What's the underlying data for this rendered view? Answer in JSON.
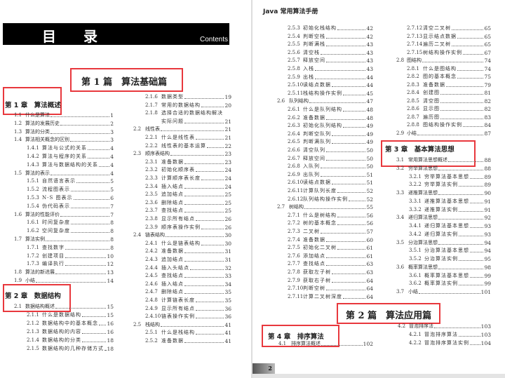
{
  "header": {
    "banner_title": "目 录",
    "banner_subtitle": "Contents",
    "book_title": "Java 常用算法手册",
    "page_number": "2"
  },
  "parts": [
    {
      "title": "第 1 篇　算法基础篇"
    },
    {
      "title": "第 2 篇　算法应用篇"
    }
  ],
  "chapters": [
    {
      "title": "第 1 章　算法概述"
    },
    {
      "title": "第 2 章　数据结构"
    },
    {
      "title": "第 3 章　基本算法思想"
    },
    {
      "title": "第 4 章　排序算法"
    }
  ],
  "accent_color": "#e8383d",
  "groups": [
    {
      "entries": [
        {
          "num": "1.1",
          "title": "什么是算法",
          "page": "1",
          "level": 1
        },
        {
          "num": "1.2",
          "title": "算法的发展历史",
          "page": "2",
          "level": 1
        },
        {
          "num": "1.3",
          "title": "算法的分类",
          "page": "3",
          "level": 1
        },
        {
          "num": "1.4",
          "title": "算法相关概念的区别",
          "page": "3",
          "level": 1
        },
        {
          "num": "1.4.1",
          "title": "算法与公式的关系",
          "page": "4",
          "level": 2
        },
        {
          "num": "1.4.2",
          "title": "算法与程序的关系",
          "page": "4",
          "level": 2
        },
        {
          "num": "1.4.3",
          "title": "算法与数据结构的关系",
          "page": "4",
          "level": 2
        },
        {
          "num": "1.5",
          "title": "算法的表示",
          "page": "4",
          "level": 1
        },
        {
          "num": "1.5.1",
          "title": "自然语言表示",
          "page": "5",
          "level": 2
        },
        {
          "num": "1.5.2",
          "title": "流程图表示",
          "page": "5",
          "level": 2
        },
        {
          "num": "1.5.3",
          "title": "N-S 图表示",
          "page": "6",
          "level": 2
        },
        {
          "num": "1.5.4",
          "title": "伪代码表示",
          "page": "7",
          "level": 2
        },
        {
          "num": "1.6",
          "title": "算法的性能评价",
          "page": "7",
          "level": 1
        },
        {
          "num": "1.6.1",
          "title": "时间复杂度",
          "page": "8",
          "level": 2
        },
        {
          "num": "1.6.2",
          "title": "空间复杂度",
          "page": "8",
          "level": 2
        },
        {
          "num": "1.7",
          "title": "算法实例",
          "page": "8",
          "level": 1
        },
        {
          "num": "1.7.1",
          "title": "查找数字",
          "page": "8",
          "level": 2
        },
        {
          "num": "1.7.2",
          "title": "创建项目",
          "page": "10",
          "level": 2
        },
        {
          "num": "1.7.3",
          "title": "编译执行",
          "page": "12",
          "level": 2
        },
        {
          "num": "1.8",
          "title": "算法的新进展",
          "page": "13",
          "level": 1
        },
        {
          "num": "1.9",
          "title": "小结",
          "page": "14",
          "level": 1
        }
      ]
    },
    {
      "entries": [
        {
          "num": "2.1",
          "title": "数据结构概述",
          "page": "15",
          "level": 1
        },
        {
          "num": "2.1.1",
          "title": "什么是数据结构",
          "page": "15",
          "level": 2
        },
        {
          "num": "2.1.2",
          "title": "数据结构中的基本概念",
          "page": "16",
          "level": 2
        },
        {
          "num": "2.1.3",
          "title": "数据结构的内容",
          "page": "16",
          "level": 2
        },
        {
          "num": "2.1.4",
          "title": "数据结构的分类",
          "page": "18",
          "level": 2
        },
        {
          "num": "2.1.5",
          "title": "数据结构的几种存储方式",
          "page": "18",
          "level": 2
        }
      ]
    },
    {
      "entries": [
        {
          "num": "2.1.6",
          "title": "数据类型",
          "page": "19",
          "level": 2
        },
        {
          "num": "2.1.7",
          "title": "常用的数据结构",
          "page": "20",
          "level": 2
        },
        {
          "num": "2.1.8",
          "title": "选择合适的数据结构解决",
          "page": "",
          "level": 2
        },
        {
          "num": "",
          "title": "实际问题",
          "page": "21",
          "level": 2
        },
        {
          "num": "2.2",
          "title": "线性表",
          "page": "21",
          "level": 1
        },
        {
          "num": "2.2.1",
          "title": "什么是线性表",
          "page": "21",
          "level": 2
        },
        {
          "num": "2.2.2",
          "title": "线性表的基本运算",
          "page": "22",
          "level": 2
        },
        {
          "num": "2.3",
          "title": "顺序表结构",
          "page": "23",
          "level": 1
        },
        {
          "num": "2.3.1",
          "title": "准备数据",
          "page": "23",
          "level": 2
        },
        {
          "num": "2.3.2",
          "title": "初始化顺序表",
          "page": "24",
          "level": 2
        },
        {
          "num": "2.3.3",
          "title": "计算顺序表长度",
          "page": "24",
          "level": 2
        },
        {
          "num": "2.3.4",
          "title": "插入结点",
          "page": "24",
          "level": 2
        },
        {
          "num": "2.3.5",
          "title": "追加结点",
          "page": "25",
          "level": 2
        },
        {
          "num": "2.3.6",
          "title": "删除结点",
          "page": "25",
          "level": 2
        },
        {
          "num": "2.3.7",
          "title": "查找结点",
          "page": "25",
          "level": 2
        },
        {
          "num": "2.3.8",
          "title": "显示所有结点",
          "page": "26",
          "level": 2
        },
        {
          "num": "2.3.9",
          "title": "顺序表操作实例",
          "page": "26",
          "level": 2
        },
        {
          "num": "2.4",
          "title": "链表结构",
          "page": "30",
          "level": 1
        },
        {
          "num": "2.4.1",
          "title": "什么是链表结构",
          "page": "30",
          "level": 2
        },
        {
          "num": "2.4.2",
          "title": "准备数据",
          "page": "31",
          "level": 2
        },
        {
          "num": "2.4.3",
          "title": "追加结点",
          "page": "31",
          "level": 2
        },
        {
          "num": "2.4.4",
          "title": "插入头结点",
          "page": "32",
          "level": 2
        },
        {
          "num": "2.4.5",
          "title": "查找结点",
          "page": "33",
          "level": 2
        },
        {
          "num": "2.4.6",
          "title": "插入结点",
          "page": "34",
          "level": 2
        },
        {
          "num": "2.4.7",
          "title": "删除结点",
          "page": "35",
          "level": 2
        },
        {
          "num": "2.4.8",
          "title": "计算链表长度",
          "page": "35",
          "level": 2
        },
        {
          "num": "2.4.9",
          "title": "显示所有结点",
          "page": "36",
          "level": 2
        },
        {
          "num": "2.4.10",
          "title": "链表操作实例",
          "page": "36",
          "level": 2
        },
        {
          "num": "2.5",
          "title": "栈结构",
          "page": "41",
          "level": 1
        },
        {
          "num": "2.5.1",
          "title": "什么是栈结构",
          "page": "41",
          "level": 2
        },
        {
          "num": "2.5.2",
          "title": "准备数据",
          "page": "41",
          "level": 2
        }
      ]
    },
    {
      "entries": [
        {
          "num": "2.5.3",
          "title": "初始化栈结构",
          "page": "42",
          "level": 2
        },
        {
          "num": "2.5.4",
          "title": "判断空栈",
          "page": "42",
          "level": 2
        },
        {
          "num": "2.5.5",
          "title": "判断满栈",
          "page": "43",
          "level": 2
        },
        {
          "num": "2.5.6",
          "title": "清空栈",
          "page": "43",
          "level": 2
        },
        {
          "num": "2.5.7",
          "title": "释放空间",
          "page": "43",
          "level": 2
        },
        {
          "num": "2.5.8",
          "title": "入栈",
          "page": "43",
          "level": 2
        },
        {
          "num": "2.5.9",
          "title": "出栈",
          "page": "44",
          "level": 2
        },
        {
          "num": "2.5.10",
          "title": "读结点数据",
          "page": "44",
          "level": 2
        },
        {
          "num": "2.5.11",
          "title": "栈结构操作实例",
          "page": "45",
          "level": 2
        },
        {
          "num": "2.6",
          "title": "队列结构",
          "page": "47",
          "level": 1
        },
        {
          "num": "2.6.1",
          "title": "什么是队列结构",
          "page": "48",
          "level": 2
        },
        {
          "num": "2.6.2",
          "title": "准备数据",
          "page": "48",
          "level": 2
        },
        {
          "num": "2.6.3",
          "title": "初始化队列结构",
          "page": "49",
          "level": 2
        },
        {
          "num": "2.6.4",
          "title": "判断空队列",
          "page": "49",
          "level": 2
        },
        {
          "num": "2.6.5",
          "title": "判断满队列",
          "page": "49",
          "level": 2
        },
        {
          "num": "2.6.6",
          "title": "清空队列",
          "page": "50",
          "level": 2
        },
        {
          "num": "2.6.7",
          "title": "释放空间",
          "page": "50",
          "level": 2
        },
        {
          "num": "2.6.8",
          "title": "入队列",
          "page": "50",
          "level": 2
        },
        {
          "num": "2.6.9",
          "title": "出队列",
          "page": "51",
          "level": 2
        },
        {
          "num": "2.6.10",
          "title": "读结点数据",
          "page": "51",
          "level": 2
        },
        {
          "num": "2.6.11",
          "title": "计算队列长度",
          "page": "52",
          "level": 2
        },
        {
          "num": "2.6.12",
          "title": "队列结构操作实例",
          "page": "52",
          "level": 2
        },
        {
          "num": "2.7",
          "title": "树结构",
          "page": "55",
          "level": 1
        },
        {
          "num": "2.7.1",
          "title": "什么是树结构",
          "page": "56",
          "level": 2
        },
        {
          "num": "2.7.2",
          "title": "树的基本概念",
          "page": "56",
          "level": 2
        },
        {
          "num": "2.7.3",
          "title": "二叉树",
          "page": "57",
          "level": 2
        },
        {
          "num": "2.7.4",
          "title": "准备数据",
          "page": "60",
          "level": 2
        },
        {
          "num": "2.7.5",
          "title": "初始化二叉树",
          "page": "61",
          "level": 2
        },
        {
          "num": "2.7.6",
          "title": "添加结点",
          "page": "61",
          "level": 2
        },
        {
          "num": "2.7.7",
          "title": "查找结点",
          "page": "63",
          "level": 2
        },
        {
          "num": "2.7.8",
          "title": "获取左子树",
          "page": "63",
          "level": 2
        },
        {
          "num": "2.7.9",
          "title": "获取右子树",
          "page": "64",
          "level": 2
        },
        {
          "num": "2.7.10",
          "title": "判断空树",
          "page": "64",
          "level": 2
        },
        {
          "num": "2.7.11",
          "title": "计算二叉树深度",
          "page": "64",
          "level": 2
        }
      ]
    },
    {
      "entries": [
        {
          "num": "4.1",
          "title": "排序算法概述",
          "page": "102",
          "level": 1
        }
      ]
    },
    {
      "entries": [
        {
          "num": "2.7.12",
          "title": "清空二叉树",
          "page": "65",
          "level": 2
        },
        {
          "num": "2.7.13",
          "title": "显示结点数据",
          "page": "65",
          "level": 2
        },
        {
          "num": "2.7.14",
          "title": "遍历二叉树",
          "page": "65",
          "level": 2
        },
        {
          "num": "2.7.15",
          "title": "树结构操作实例",
          "page": "67",
          "level": 2
        },
        {
          "num": "2.8",
          "title": "图结构",
          "page": "74",
          "level": 1
        },
        {
          "num": "2.8.1",
          "title": "什么是图结构",
          "page": "74",
          "level": 2
        },
        {
          "num": "2.8.2",
          "title": "图的基本概念",
          "page": "75",
          "level": 2
        },
        {
          "num": "2.8.3",
          "title": "准备数据",
          "page": "79",
          "level": 2
        },
        {
          "num": "2.8.4",
          "title": "创建图",
          "page": "81",
          "level": 2
        },
        {
          "num": "2.8.5",
          "title": "清空图",
          "page": "82",
          "level": 2
        },
        {
          "num": "2.8.6",
          "title": "显示图",
          "page": "82",
          "level": 2
        },
        {
          "num": "2.8.7",
          "title": "遍历图",
          "page": "83",
          "level": 2
        },
        {
          "num": "2.8.8",
          "title": "图结构操作实例",
          "page": "84",
          "level": 2
        },
        {
          "num": "2.9",
          "title": "小结",
          "page": "87",
          "level": 1
        }
      ]
    },
    {
      "entries": [
        {
          "num": "3.1",
          "title": "常用算法思想概述",
          "page": "88",
          "level": 1
        },
        {
          "num": "3.2",
          "title": "穷举算法思想",
          "page": "88",
          "level": 1
        },
        {
          "num": "3.2.1",
          "title": "穷举算法基本思想",
          "page": "89",
          "level": 2
        },
        {
          "num": "3.2.2",
          "title": "穷举算法实例",
          "page": "89",
          "level": 2
        },
        {
          "num": "3.3",
          "title": "递推算法思想",
          "page": "90",
          "level": 1
        },
        {
          "num": "3.3.1",
          "title": "递推算法基本思想",
          "page": "91",
          "level": 2
        },
        {
          "num": "3.3.2",
          "title": "递推算法实例",
          "page": "91",
          "level": 2
        },
        {
          "num": "3.4",
          "title": "递归算法思想",
          "page": "92",
          "level": 1
        },
        {
          "num": "3.4.1",
          "title": "递归算法基本思想",
          "page": "93",
          "level": 2
        },
        {
          "num": "3.4.2",
          "title": "递归算法实例",
          "page": "93",
          "level": 2
        },
        {
          "num": "3.5",
          "title": "分治算法思想",
          "page": "94",
          "level": 1
        },
        {
          "num": "3.5.1",
          "title": "分治算法基本思想",
          "page": "94",
          "level": 2
        },
        {
          "num": "3.5.2",
          "title": "分治算法实例",
          "page": "95",
          "level": 2
        },
        {
          "num": "3.6",
          "title": "概率算法思想",
          "page": "98",
          "level": 1
        },
        {
          "num": "3.6.1",
          "title": "概率算法基本思想",
          "page": "99",
          "level": 2
        },
        {
          "num": "3.6.2",
          "title": "概率算法实例",
          "page": "99",
          "level": 2
        },
        {
          "num": "3.7",
          "title": "小结",
          "page": "101",
          "level": 1
        }
      ]
    },
    {
      "entries": [
        {
          "num": "4.2",
          "title": "冒泡排序法",
          "page": "103",
          "level": 1
        },
        {
          "num": "4.2.1",
          "title": "冒泡排序算法",
          "page": "103",
          "level": 2
        },
        {
          "num": "4.2.2",
          "title": "冒泡排序算法实例",
          "page": "104",
          "level": 2
        }
      ]
    }
  ]
}
